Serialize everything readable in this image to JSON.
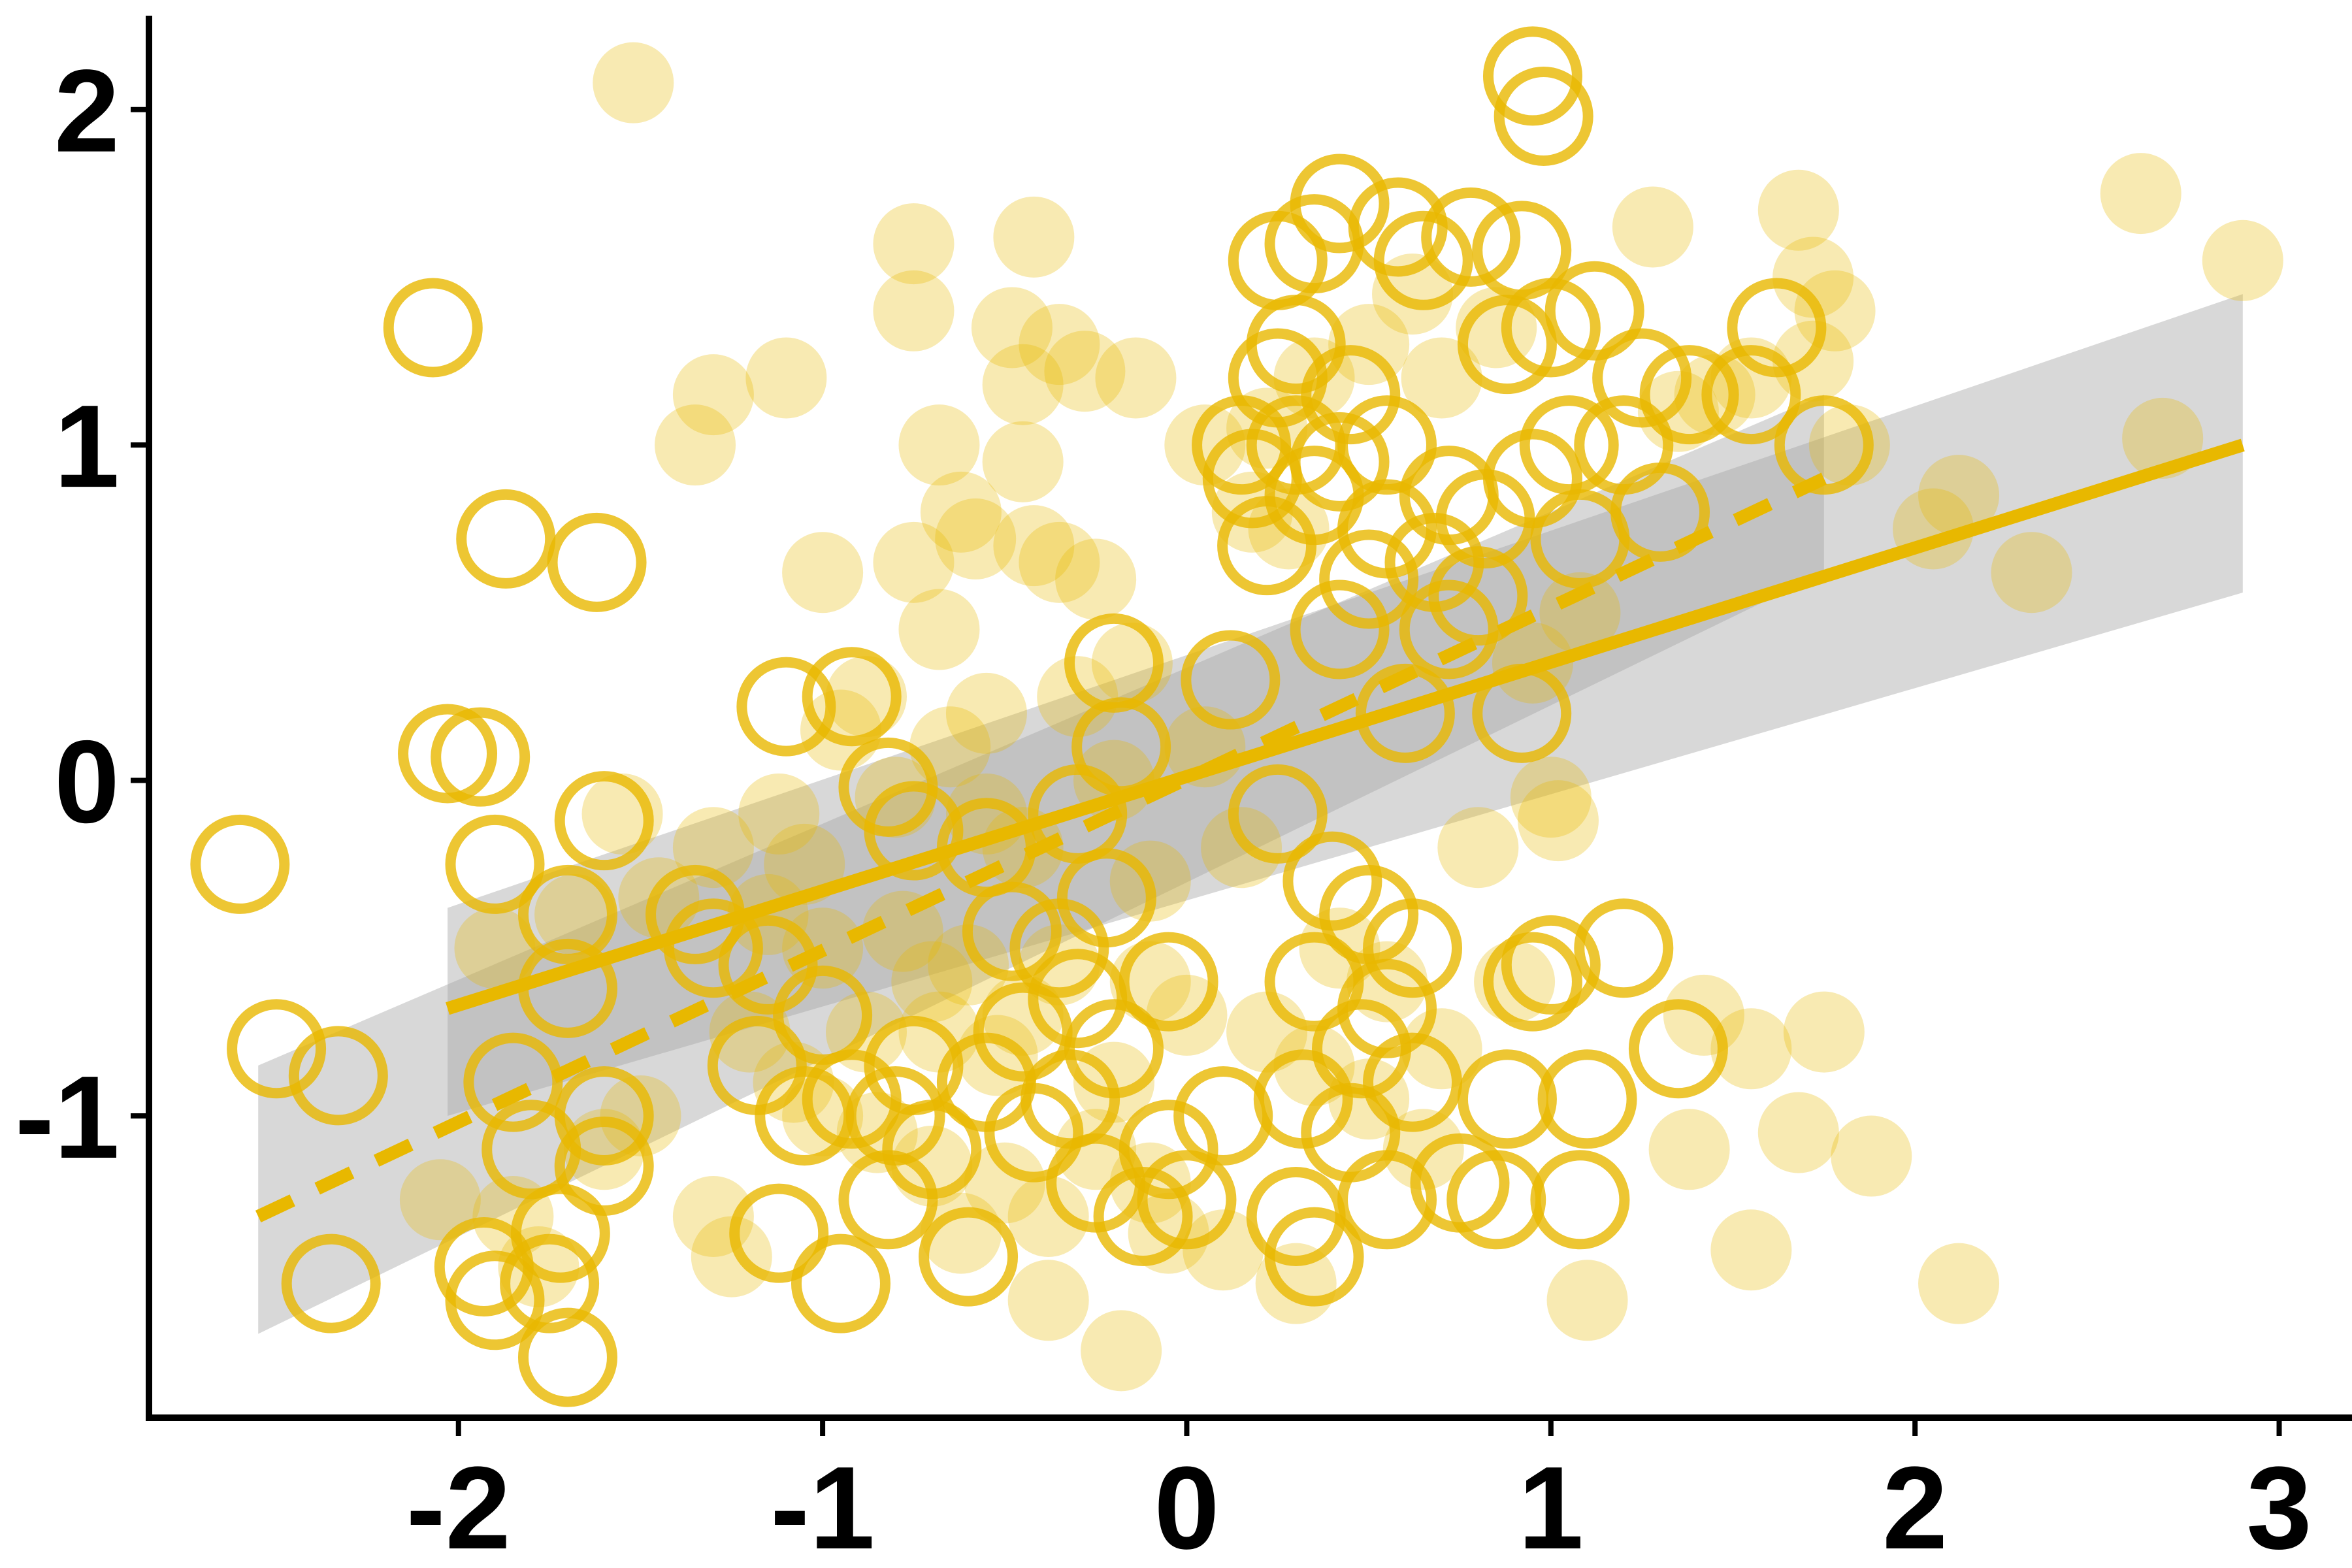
{
  "chart_data": {
    "type": "scatter",
    "title": "",
    "xlabel": "",
    "ylabel": "",
    "xlim": [
      -2.85,
      3.2
    ],
    "ylim": [
      -1.9,
      2.28
    ],
    "x_ticks": [
      -2,
      -1,
      0,
      1,
      2,
      3
    ],
    "y_ticks": [
      -1,
      0,
      1,
      2
    ],
    "x_tick_labels": [
      "-2",
      "-1",
      "0",
      "1",
      "2",
      "3"
    ],
    "y_tick_labels": [
      "-1",
      "0",
      "1",
      "2"
    ],
    "grid": false,
    "legend": "none",
    "colors": {
      "point": "#E8B800",
      "band": "#A9A9A9",
      "axis": "#000000"
    },
    "series": [
      {
        "marker": "filled-translucent",
        "points": [
          [
            -1.52,
            2.08
          ],
          [
            -0.75,
            1.6
          ],
          [
            -0.42,
            1.62
          ],
          [
            -0.75,
            1.4
          ],
          [
            -0.48,
            1.35
          ],
          [
            -0.35,
            1.3
          ],
          [
            -0.28,
            1.22
          ],
          [
            -0.14,
            1.2
          ],
          [
            -0.45,
            1.18
          ],
          [
            -1.1,
            1.2
          ],
          [
            -1.3,
            1.15
          ],
          [
            -1.35,
            1.0
          ],
          [
            -0.68,
            1.0
          ],
          [
            -0.45,
            0.95
          ],
          [
            -0.62,
            0.8
          ],
          [
            -0.58,
            0.72
          ],
          [
            -0.75,
            0.65
          ],
          [
            -0.42,
            0.7
          ],
          [
            -0.35,
            0.65
          ],
          [
            -0.25,
            0.6
          ],
          [
            -1.0,
            0.62
          ],
          [
            -0.68,
            0.45
          ],
          [
            -0.15,
            0.35
          ],
          [
            -0.3,
            0.25
          ],
          [
            -0.55,
            0.2
          ],
          [
            -0.88,
            0.25
          ],
          [
            -0.95,
            0.15
          ],
          [
            -0.65,
            0.1
          ],
          [
            -0.8,
            -0.05
          ],
          [
            -0.55,
            -0.1
          ],
          [
            -0.45,
            -0.2
          ],
          [
            -1.12,
            -0.1
          ],
          [
            -1.3,
            -0.2
          ],
          [
            -1.05,
            -0.25
          ],
          [
            -1.55,
            -0.1
          ],
          [
            -1.9,
            -0.5
          ],
          [
            -1.68,
            -0.4
          ],
          [
            -1.45,
            -0.35
          ],
          [
            -1.15,
            -0.4
          ],
          [
            -1.0,
            -0.5
          ],
          [
            -0.78,
            -0.45
          ],
          [
            -0.6,
            -0.55
          ],
          [
            -0.7,
            -0.6
          ],
          [
            -0.35,
            -0.55
          ],
          [
            -0.45,
            -0.7
          ],
          [
            -0.68,
            -0.75
          ],
          [
            -0.52,
            -0.82
          ],
          [
            -1.2,
            -0.75
          ],
          [
            -1.08,
            -0.9
          ],
          [
            -1.0,
            -1.0
          ],
          [
            -0.85,
            -1.05
          ],
          [
            -0.7,
            -1.15
          ],
          [
            -0.5,
            -1.2
          ],
          [
            -0.38,
            -1.3
          ],
          [
            -0.62,
            -1.35
          ],
          [
            -0.25,
            -1.1
          ],
          [
            -0.1,
            -1.2
          ],
          [
            -0.05,
            -1.35
          ],
          [
            0.1,
            -1.4
          ],
          [
            -0.2,
            -0.9
          ],
          [
            0.0,
            -0.7
          ],
          [
            -0.1,
            -0.6
          ],
          [
            0.22,
            -0.75
          ],
          [
            0.35,
            -0.85
          ],
          [
            0.5,
            -0.95
          ],
          [
            0.7,
            -0.8
          ],
          [
            0.55,
            -0.6
          ],
          [
            0.42,
            -0.5
          ],
          [
            -1.85,
            -1.3
          ],
          [
            -2.05,
            -1.25
          ],
          [
            -1.78,
            -1.45
          ],
          [
            -1.6,
            -1.1
          ],
          [
            -1.25,
            -1.42
          ],
          [
            -1.3,
            -1.3
          ],
          [
            -1.5,
            -1.0
          ],
          [
            -0.38,
            -1.55
          ],
          [
            -0.18,
            -1.7
          ],
          [
            0.3,
            -1.5
          ],
          [
            -0.1,
            -0.3
          ],
          [
            0.15,
            -0.2
          ],
          [
            -0.2,
            0.0
          ],
          [
            0.05,
            0.1
          ],
          [
            0.18,
            0.8
          ],
          [
            0.28,
            0.75
          ],
          [
            0.05,
            1.0
          ],
          [
            0.22,
            1.05
          ],
          [
            0.35,
            1.2
          ],
          [
            0.5,
            1.3
          ],
          [
            0.62,
            1.45
          ],
          [
            0.7,
            1.2
          ],
          [
            0.85,
            1.35
          ],
          [
            1.28,
            1.65
          ],
          [
            1.35,
            1.1
          ],
          [
            1.45,
            1.15
          ],
          [
            1.55,
            1.2
          ],
          [
            1.68,
            1.7
          ],
          [
            1.72,
            1.5
          ],
          [
            1.78,
            1.4
          ],
          [
            1.72,
            1.25
          ],
          [
            1.82,
            1.0
          ],
          [
            1.0,
            -0.05
          ],
          [
            1.02,
            -0.12
          ],
          [
            0.95,
            0.35
          ],
          [
            1.08,
            0.5
          ],
          [
            1.42,
            -0.7
          ],
          [
            1.55,
            -0.8
          ],
          [
            1.38,
            -1.1
          ],
          [
            1.55,
            -1.4
          ],
          [
            1.1,
            -1.55
          ],
          [
            1.75,
            -0.75
          ],
          [
            1.68,
            -1.05
          ],
          [
            1.88,
            -1.12
          ],
          [
            2.12,
            -1.5
          ],
          [
            2.05,
            0.75
          ],
          [
            2.12,
            0.85
          ],
          [
            2.32,
            0.62
          ],
          [
            2.62,
            1.75
          ],
          [
            2.68,
            1.02
          ],
          [
            2.9,
            1.55
          ],
          [
            0.8,
            -0.2
          ],
          [
            0.65,
            -1.1
          ],
          [
            0.9,
            -0.6
          ],
          [
            -0.88,
            -0.75
          ]
        ]
      },
      {
        "marker": "open-circle",
        "points": [
          [
            -2.07,
            1.35
          ],
          [
            -1.87,
            0.72
          ],
          [
            -1.62,
            0.65
          ],
          [
            -2.6,
            -0.25
          ],
          [
            -2.03,
            0.08
          ],
          [
            -1.94,
            0.07
          ],
          [
            -1.9,
            -0.25
          ],
          [
            -1.6,
            -0.12
          ],
          [
            -1.7,
            -0.4
          ],
          [
            -2.5,
            -0.8
          ],
          [
            -2.33,
            -0.88
          ],
          [
            -1.7,
            -0.62
          ],
          [
            -1.85,
            -0.9
          ],
          [
            -1.6,
            -1.0
          ],
          [
            -1.8,
            -1.1
          ],
          [
            -1.6,
            -1.15
          ],
          [
            -1.72,
            -1.35
          ],
          [
            -1.93,
            -1.45
          ],
          [
            -1.9,
            -1.55
          ],
          [
            -1.75,
            -1.5
          ],
          [
            -1.7,
            -1.72
          ],
          [
            -2.35,
            -1.5
          ],
          [
            -1.35,
            -0.4
          ],
          [
            -1.3,
            -0.5
          ],
          [
            -1.15,
            -0.55
          ],
          [
            -1.0,
            -0.7
          ],
          [
            -1.18,
            -0.85
          ],
          [
            -1.05,
            -1.0
          ],
          [
            -0.92,
            -0.95
          ],
          [
            -0.75,
            -0.85
          ],
          [
            -0.8,
            -1.0
          ],
          [
            -0.7,
            -1.1
          ],
          [
            -0.82,
            -1.25
          ],
          [
            -1.12,
            -1.35
          ],
          [
            -0.95,
            -1.5
          ],
          [
            -1.1,
            0.22
          ],
          [
            -0.92,
            0.25
          ],
          [
            -0.82,
            -0.02
          ],
          [
            -0.75,
            -0.15
          ],
          [
            -0.55,
            -0.2
          ],
          [
            -0.3,
            -0.1
          ],
          [
            -0.48,
            -0.45
          ],
          [
            -0.35,
            -0.5
          ],
          [
            -0.3,
            -0.65
          ],
          [
            -0.45,
            -0.75
          ],
          [
            -0.55,
            -0.9
          ],
          [
            -0.32,
            -0.95
          ],
          [
            -0.42,
            -1.05
          ],
          [
            -0.25,
            -1.2
          ],
          [
            -0.12,
            -1.3
          ],
          [
            -0.05,
            -1.1
          ],
          [
            -0.2,
            -0.8
          ],
          [
            -0.05,
            -0.6
          ],
          [
            -0.22,
            -0.35
          ],
          [
            -0.18,
            0.1
          ],
          [
            -0.2,
            0.35
          ],
          [
            0.12,
            0.3
          ],
          [
            0.25,
            -0.1
          ],
          [
            0.4,
            -0.3
          ],
          [
            0.5,
            -0.4
          ],
          [
            0.62,
            -0.5
          ],
          [
            0.35,
            -0.6
          ],
          [
            0.55,
            -0.68
          ],
          [
            0.48,
            -0.8
          ],
          [
            0.62,
            -0.9
          ],
          [
            0.32,
            -0.95
          ],
          [
            0.45,
            -1.05
          ],
          [
            0.3,
            -1.3
          ],
          [
            0.35,
            -1.42
          ],
          [
            0.55,
            -1.25
          ],
          [
            0.75,
            -1.2
          ],
          [
            0.85,
            -1.25
          ],
          [
            0.88,
            -0.95
          ],
          [
            0.95,
            -0.6
          ],
          [
            1.0,
            -0.55
          ],
          [
            1.2,
            -0.5
          ],
          [
            1.1,
            -0.95
          ],
          [
            1.35,
            -0.8
          ],
          [
            1.08,
            -1.25
          ],
          [
            0.1,
            -1.0
          ],
          [
            0.0,
            -1.25
          ],
          [
            -0.6,
            -1.42
          ],
          [
            0.42,
            0.45
          ],
          [
            0.6,
            0.2
          ],
          [
            0.92,
            0.2
          ],
          [
            1.08,
            0.72
          ],
          [
            1.3,
            0.8
          ],
          [
            0.25,
            1.55
          ],
          [
            0.35,
            1.6
          ],
          [
            0.42,
            1.72
          ],
          [
            0.58,
            1.65
          ],
          [
            0.65,
            1.55
          ],
          [
            0.78,
            1.62
          ],
          [
            0.92,
            1.58
          ],
          [
            0.95,
            2.1
          ],
          [
            0.98,
            1.98
          ],
          [
            0.3,
            1.3
          ],
          [
            0.25,
            1.2
          ],
          [
            0.45,
            1.15
          ],
          [
            0.3,
            1.0
          ],
          [
            0.42,
            0.95
          ],
          [
            0.55,
            1.0
          ],
          [
            0.35,
            0.85
          ],
          [
            0.55,
            0.75
          ],
          [
            0.72,
            0.85
          ],
          [
            0.68,
            0.65
          ],
          [
            0.82,
            0.78
          ],
          [
            0.95,
            0.9
          ],
          [
            1.05,
            1.0
          ],
          [
            0.88,
            1.3
          ],
          [
            1.0,
            1.35
          ],
          [
            1.12,
            1.4
          ],
          [
            1.25,
            1.2
          ],
          [
            1.38,
            1.15
          ],
          [
            1.55,
            1.15
          ],
          [
            1.62,
            1.35
          ],
          [
            1.75,
            1.0
          ],
          [
            0.8,
            0.55
          ],
          [
            0.72,
            0.45
          ],
          [
            0.18,
            0.9
          ],
          [
            0.22,
            0.7
          ],
          [
            0.5,
            0.6
          ],
          [
            0.15,
            1.0
          ],
          [
            1.2,
            1.0
          ]
        ]
      }
    ],
    "fits": [
      {
        "style": "solid",
        "x_range": [
          -2.03,
          2.9
        ],
        "line": [
          [
            -2.03,
            -0.68
          ],
          [
            2.9,
            1.0
          ]
        ],
        "band_upper": [
          [
            -2.03,
            -0.38
          ],
          [
            2.9,
            1.45
          ]
        ],
        "band_lower": [
          [
            -2.03,
            -1.0
          ],
          [
            2.9,
            0.56
          ]
        ]
      },
      {
        "style": "dashed",
        "x_range": [
          -2.55,
          1.75
        ],
        "line": [
          [
            -2.55,
            -1.3
          ],
          [
            1.75,
            0.9
          ]
        ],
        "band_upper": [
          [
            -2.55,
            -0.85
          ],
          [
            1.75,
            1.15
          ]
        ],
        "band_lower": [
          [
            -2.55,
            -1.65
          ],
          [
            1.75,
            0.62
          ]
        ]
      }
    ]
  }
}
